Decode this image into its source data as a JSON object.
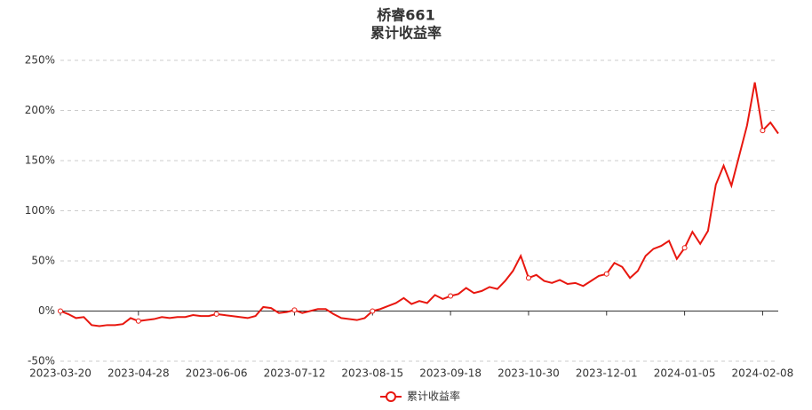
{
  "chart_data": {
    "type": "line",
    "title": "桥睿661",
    "subtitle": "累计收益率",
    "categories": [
      "2023-03-20",
      null,
      null,
      null,
      null,
      null,
      null,
      null,
      null,
      null,
      "2023-04-28",
      null,
      null,
      null,
      null,
      null,
      null,
      null,
      null,
      null,
      "2023-06-06",
      null,
      null,
      null,
      null,
      null,
      null,
      null,
      null,
      null,
      "2023-07-12",
      null,
      null,
      null,
      null,
      null,
      null,
      null,
      null,
      null,
      "2023-08-15",
      null,
      null,
      null,
      null,
      null,
      null,
      null,
      null,
      null,
      "2023-09-18",
      null,
      null,
      null,
      null,
      null,
      null,
      null,
      null,
      null,
      "2023-10-30",
      null,
      null,
      null,
      null,
      null,
      null,
      null,
      null,
      null,
      "2023-12-01",
      null,
      null,
      null,
      null,
      null,
      null,
      null,
      null,
      null,
      "2024-01-05",
      null,
      null,
      null,
      null,
      null,
      null,
      null,
      null,
      null,
      "2024-02-08",
      null,
      null
    ],
    "series": [
      {
        "name": "累计收益率",
        "color": "#e8170f",
        "values": [
          0,
          -3,
          -7,
          -6,
          -14,
          -15,
          -14,
          -14,
          -13,
          -7,
          -10,
          -9,
          -8,
          -6,
          -7,
          -6,
          -6,
          -4,
          -5,
          -5,
          -3,
          -4,
          -5,
          -6,
          -7,
          -5,
          4,
          3,
          -2,
          -1,
          1,
          -2,
          0,
          2,
          2,
          -3,
          -7,
          -8,
          -9,
          -7,
          0,
          2,
          5,
          8,
          13,
          7,
          10,
          8,
          16,
          12,
          15,
          17,
          23,
          18,
          20,
          24,
          22,
          30,
          40,
          55,
          33,
          36,
          30,
          28,
          31,
          27,
          28,
          25,
          30,
          35,
          37,
          48,
          44,
          33,
          40,
          55,
          62,
          65,
          70,
          52,
          63,
          79,
          67,
          80,
          126,
          145,
          125,
          155,
          185,
          228,
          180,
          188,
          177
        ]
      }
    ],
    "ylim": [
      -50,
      250
    ],
    "yticks": [
      {
        "value": -50,
        "label": "-50%"
      },
      {
        "value": 0,
        "label": "0%"
      },
      {
        "value": 50,
        "label": "50%"
      },
      {
        "value": 100,
        "label": "100%"
      },
      {
        "value": 150,
        "label": "150%"
      },
      {
        "value": 200,
        "label": "200%"
      },
      {
        "value": 250,
        "label": "250%"
      }
    ],
    "grid": true
  }
}
